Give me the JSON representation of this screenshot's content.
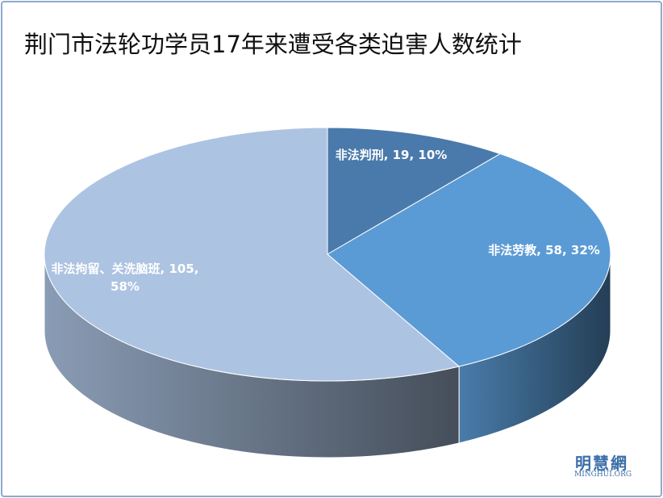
{
  "chart_data": {
    "type": "pie",
    "title": "荆门市法轮功学员17年来遭受各类迫害人数统计",
    "categories": [
      "非法判刑",
      "非法劳教",
      "非法拘留、关洗脑班"
    ],
    "values": [
      19,
      58,
      105
    ],
    "value_labels": [
      "非法判刑, 19, 10%",
      "非法劳教, 58, 32%",
      "非法拘留、关洗脑班, 105, 58%"
    ],
    "colors": [
      "#4a7aab",
      "#5b9bd5",
      "#adc3e2"
    ]
  },
  "watermark": {
    "name": "明慧網",
    "url": "MINGHUI.ORG"
  }
}
